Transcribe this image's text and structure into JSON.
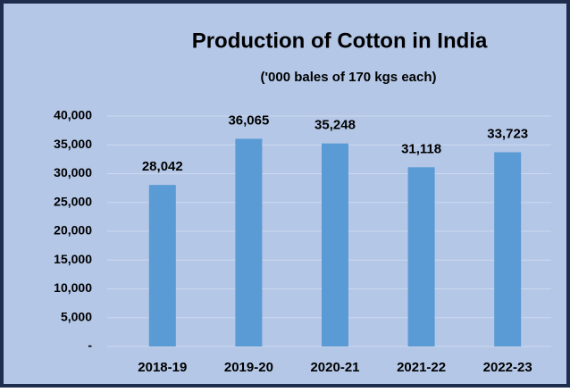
{
  "chart_data": {
    "type": "bar",
    "title": "Production of Cotton in India",
    "subtitle": "('000 bales of 170 kgs each)",
    "categories": [
      "2018-19",
      "2019-20",
      "2020-21",
      "2021-22",
      "2022-23"
    ],
    "values": [
      28042,
      36065,
      35248,
      31118,
      33723
    ],
    "value_labels": [
      "28,042",
      "36,065",
      "35,248",
      "31,118",
      "33,723"
    ],
    "color": "#5b9bd5",
    "ylim": [
      0,
      40000
    ],
    "yticks": [
      {
        "value": 0,
        "label": "-"
      },
      {
        "value": 5000,
        "label": "5,000"
      },
      {
        "value": 10000,
        "label": "10,000"
      },
      {
        "value": 15000,
        "label": "15,000"
      },
      {
        "value": 20000,
        "label": "20,000"
      },
      {
        "value": 25000,
        "label": "25,000"
      },
      {
        "value": 30000,
        "label": "30,000"
      },
      {
        "value": 35000,
        "label": "35,000"
      },
      {
        "value": 40000,
        "label": "40,000"
      }
    ],
    "grid": true
  }
}
